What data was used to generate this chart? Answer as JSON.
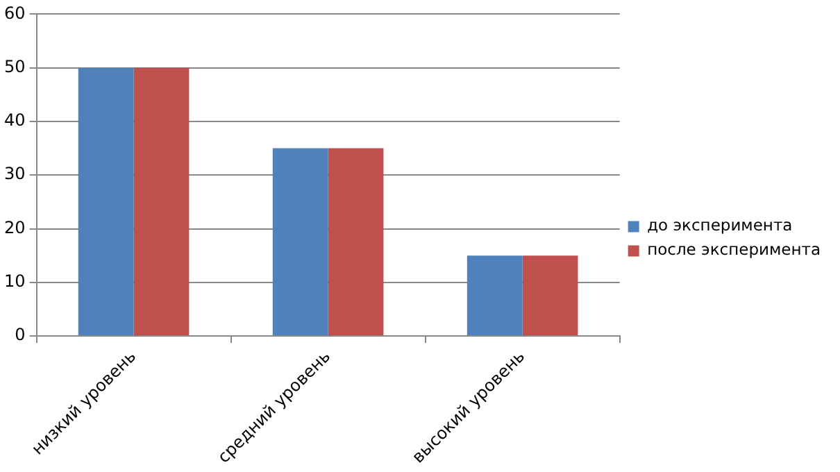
{
  "chart_data": {
    "type": "bar",
    "categories": [
      "низкий уровень",
      "средний уровень",
      "высокий уровень"
    ],
    "series": [
      {
        "name": "до эксперимента",
        "color": "#4f81bd",
        "values": [
          50,
          35,
          15
        ]
      },
      {
        "name": "после эксперимента",
        "color": "#c0504d",
        "values": [
          50,
          35,
          15
        ]
      }
    ],
    "ylim": [
      0,
      60
    ],
    "yticks": [
      0,
      10,
      20,
      30,
      40,
      50,
      60
    ],
    "grid": "y",
    "legend": "right"
  }
}
